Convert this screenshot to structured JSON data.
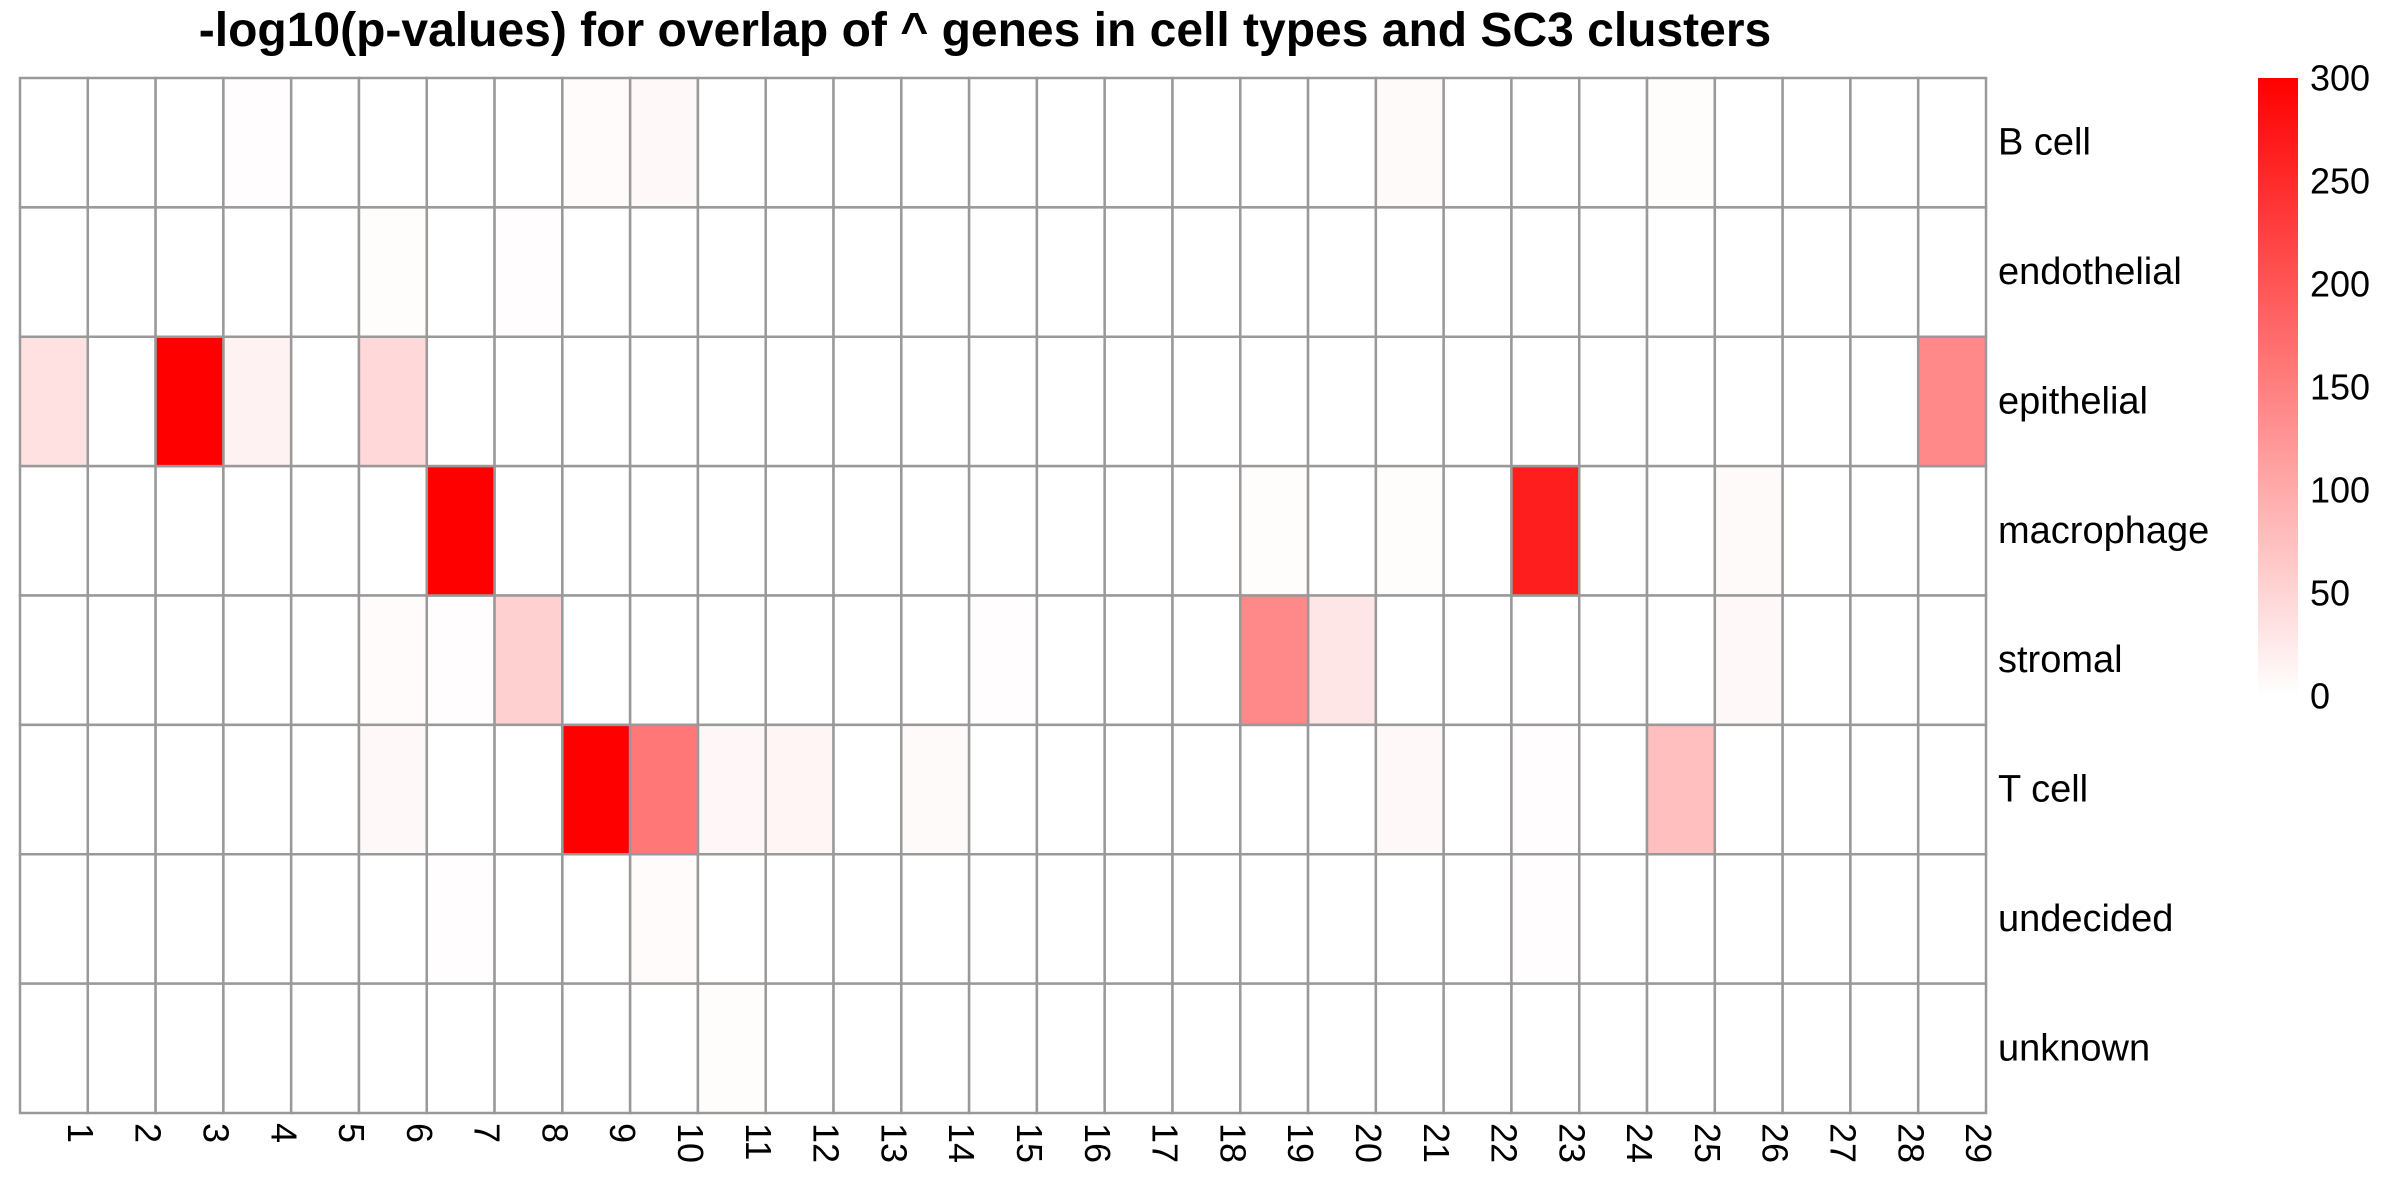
{
  "chart_data": {
    "type": "heatmap",
    "title": "-log10(p-values) for overlap of ^ genes in cell types and SC3 clusters",
    "columns": [
      "1",
      "2",
      "3",
      "4",
      "5",
      "6",
      "7",
      "8",
      "9",
      "10",
      "11",
      "12",
      "13",
      "14",
      "15",
      "16",
      "17",
      "18",
      "19",
      "20",
      "21",
      "22",
      "23",
      "24",
      "25",
      "26",
      "27",
      "28",
      "29"
    ],
    "rows": [
      "B cell",
      "endothelial",
      "epithelial",
      "macrophage",
      "stromal",
      "T cell",
      "undecided",
      "unknown"
    ],
    "values": [
      [
        0,
        0,
        0,
        2,
        0,
        0,
        0,
        0,
        5,
        8,
        0,
        0,
        0,
        0,
        0,
        0,
        0,
        0,
        0,
        0,
        6,
        0,
        0,
        0,
        4,
        0,
        0,
        0,
        0
      ],
      [
        0,
        0,
        0,
        0,
        0,
        3,
        0,
        2,
        0,
        0,
        0,
        0,
        0,
        0,
        0,
        0,
        0,
        0,
        0,
        0,
        0,
        0,
        0,
        0,
        0,
        0,
        0,
        0,
        0
      ],
      [
        35,
        0,
        300,
        15,
        0,
        45,
        0,
        0,
        0,
        0,
        0,
        0,
        0,
        0,
        0,
        0,
        0,
        0,
        0,
        0,
        0,
        0,
        0,
        0,
        0,
        0,
        0,
        0,
        140
      ],
      [
        0,
        0,
        0,
        0,
        0,
        0,
        300,
        0,
        0,
        0,
        0,
        0,
        0,
        0,
        0,
        0,
        0,
        0,
        3,
        0,
        3,
        0,
        265,
        0,
        0,
        6,
        0,
        0,
        0
      ],
      [
        0,
        0,
        0,
        0,
        0,
        5,
        2,
        55,
        0,
        0,
        0,
        0,
        0,
        0,
        2,
        0,
        0,
        0,
        140,
        30,
        0,
        0,
        0,
        0,
        0,
        8,
        0,
        0,
        0
      ],
      [
        0,
        0,
        0,
        0,
        0,
        8,
        0,
        0,
        300,
        160,
        10,
        12,
        0,
        6,
        0,
        0,
        0,
        0,
        0,
        0,
        8,
        0,
        2,
        0,
        75,
        0,
        0,
        0,
        0
      ],
      [
        0,
        0,
        0,
        0,
        0,
        0,
        2,
        0,
        0,
        5,
        0,
        0,
        0,
        0,
        0,
        0,
        0,
        0,
        0,
        0,
        0,
        0,
        2,
        0,
        0,
        0,
        0,
        0,
        0
      ],
      [
        0,
        0,
        0,
        0,
        0,
        0,
        0,
        0,
        0,
        0,
        4,
        0,
        0,
        0,
        0,
        0,
        0,
        0,
        0,
        0,
        0,
        0,
        0,
        0,
        0,
        0,
        0,
        0,
        0
      ]
    ],
    "color_scale": {
      "min": 0,
      "max": 300,
      "low_color": "#ffffff",
      "high_color": "#ff0000"
    },
    "legend": {
      "ticks": [
        "300",
        "250",
        "200",
        "150",
        "100",
        "50",
        "0"
      ],
      "position": "right"
    },
    "grid_color": "#999999"
  }
}
